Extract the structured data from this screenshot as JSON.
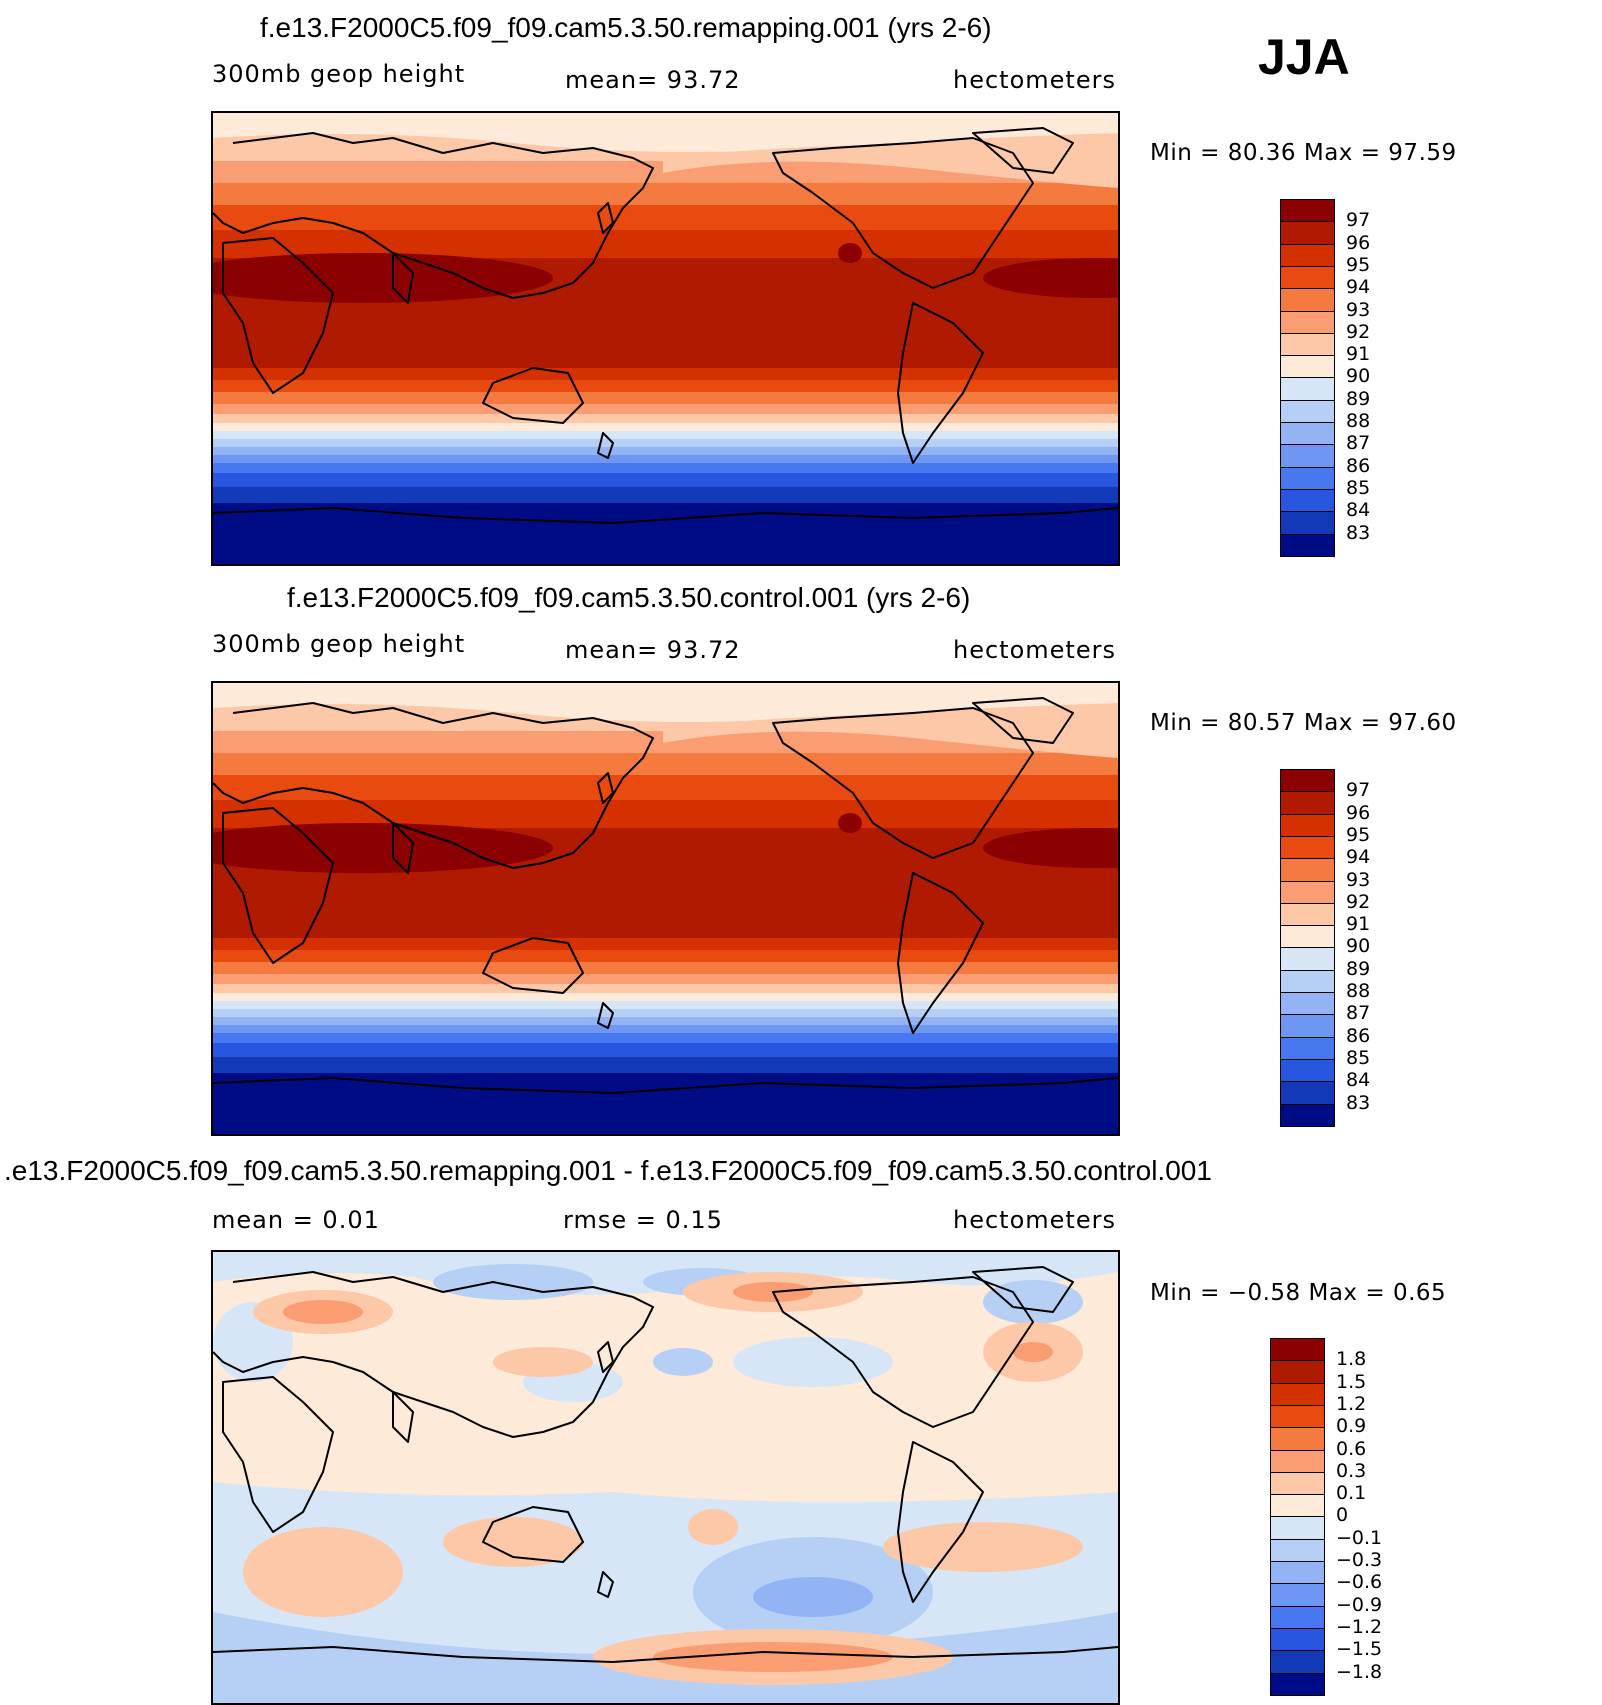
{
  "season": "JJA",
  "panels": [
    {
      "title": "f.e13.F2000C5.f09_f09.cam5.3.50.remapping.001 (yrs 2-6)",
      "left_text": "300mb geop height",
      "mid_text": "mean=   93.72",
      "units": "hectometers",
      "minmax": "Min =   80.36 Max =   97.59",
      "colorbar": {
        "labels": [
          "97",
          "96",
          "95",
          "94",
          "93",
          "92",
          "91",
          "90",
          "89",
          "88",
          "87",
          "86",
          "85",
          "84",
          "83"
        ],
        "colors": [
          "#8b0000",
          "#b01a00",
          "#d43000",
          "#e84a10",
          "#f47a40",
          "#fa9d72",
          "#fcc8a8",
          "#feead8",
          "#d6e6f7",
          "#b6cff5",
          "#92b4f4",
          "#6d97f2",
          "#4878ef",
          "#2757e0",
          "#123ab8",
          "#000c85"
        ]
      },
      "kind": "abs"
    },
    {
      "title": "f.e13.F2000C5.f09_f09.cam5.3.50.control.001 (yrs 2-6)",
      "left_text": "300mb geop height",
      "mid_text": "mean=   93.72",
      "units": "hectometers",
      "minmax": "Min =   80.57 Max =   97.60",
      "colorbar": {
        "labels": [
          "97",
          "96",
          "95",
          "94",
          "93",
          "92",
          "91",
          "90",
          "89",
          "88",
          "87",
          "86",
          "85",
          "84",
          "83"
        ],
        "colors": [
          "#8b0000",
          "#b01a00",
          "#d43000",
          "#e84a10",
          "#f47a40",
          "#fa9d72",
          "#fcc8a8",
          "#feead8",
          "#d6e6f7",
          "#b6cff5",
          "#92b4f4",
          "#6d97f2",
          "#4878ef",
          "#2757e0",
          "#123ab8",
          "#000c85"
        ]
      },
      "kind": "abs"
    },
    {
      "title": ".e13.F2000C5.f09_f09.cam5.3.50.remapping.001 - f.e13.F2000C5.f09_f09.cam5.3.50.control.001",
      "left_text": "mean =     0.01",
      "mid_text": "rmse =     0.15",
      "units": "hectometers",
      "minmax": "Min =   −0.58 Max =     0.65",
      "colorbar": {
        "labels": [
          "1.8",
          "1.5",
          "1.2",
          "0.9",
          "0.6",
          "0.3",
          "0.1",
          "0",
          "−0.1",
          "−0.3",
          "−0.6",
          "−0.9",
          "−1.2",
          "−1.5",
          "−1.8"
        ],
        "colors": [
          "#8b0000",
          "#b01a00",
          "#d43000",
          "#e84a10",
          "#f47a40",
          "#fa9d72",
          "#fcc8a8",
          "#feead8",
          "#d6e6f7",
          "#b6cff5",
          "#92b4f4",
          "#6d97f2",
          "#4878ef",
          "#2757e0",
          "#123ab8",
          "#000c85"
        ]
      },
      "kind": "diff"
    }
  ]
}
